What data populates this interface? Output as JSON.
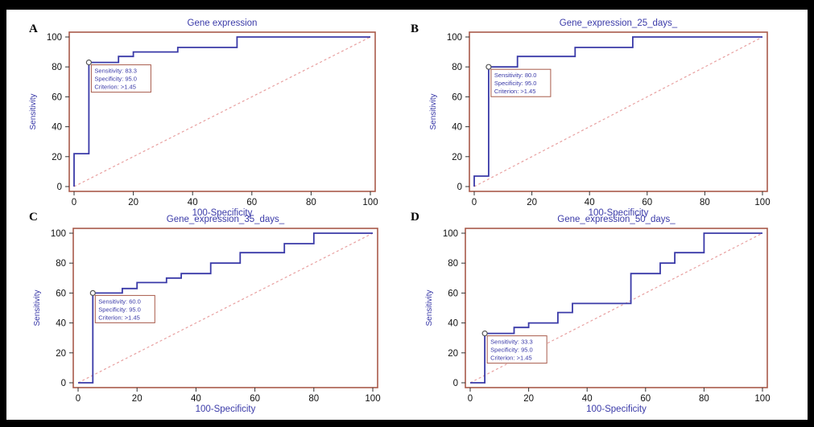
{
  "chart_data": [
    {
      "panel_letter": "A",
      "type": "line",
      "title": "Gene expression",
      "xlabel": "100-Specificity",
      "ylabel": "Sensitivity",
      "xlim": [
        0,
        100
      ],
      "ylim": [
        0,
        100
      ],
      "xticks": [
        "0",
        "20",
        "40",
        "60",
        "80",
        "100"
      ],
      "yticks": [
        "0",
        "20",
        "40",
        "60",
        "80",
        "100"
      ],
      "series": [
        {
          "x": [
            0,
            0,
            5,
            5,
            15,
            15,
            20,
            20,
            35,
            35,
            55,
            55,
            100
          ],
          "y": [
            0,
            22,
            22,
            83,
            83,
            87,
            87,
            90,
            90,
            93,
            93,
            100,
            100
          ]
        },
        {
          "x": [
            0,
            100
          ],
          "y": [
            0,
            100
          ]
        }
      ],
      "marker": {
        "x": 5,
        "y": 83
      },
      "annotation": [
        "Sensitivity: 83.3",
        "Specificity: 95.0",
        "Criterion: >1.45"
      ],
      "colors": {
        "roc": "#3a3aa8",
        "diagonal": "#e8a0a0",
        "frame": "#a85a4a"
      }
    },
    {
      "panel_letter": "B",
      "type": "line",
      "title": "Gene_expression_25_days_",
      "xlabel": "100-Specificity",
      "ylabel": "Sensitivity",
      "xlim": [
        0,
        100
      ],
      "ylim": [
        0,
        100
      ],
      "xticks": [
        "0",
        "20",
        "40",
        "60",
        "80",
        "100"
      ],
      "yticks": [
        "0",
        "20",
        "40",
        "60",
        "80",
        "100"
      ],
      "series": [
        {
          "x": [
            0,
            0,
            5,
            5,
            15,
            15,
            20,
            20,
            35,
            35,
            55,
            55,
            100
          ],
          "y": [
            0,
            7,
            7,
            80,
            80,
            87,
            87,
            87,
            87,
            93,
            93,
            100,
            100
          ]
        },
        {
          "x": [
            0,
            100
          ],
          "y": [
            0,
            100
          ]
        }
      ],
      "marker": {
        "x": 5,
        "y": 80
      },
      "annotation": [
        "Sensitivity: 80.0",
        "Specificity: 95.0",
        "Criterion: >1.45"
      ],
      "colors": {
        "roc": "#3a3aa8",
        "diagonal": "#e8a0a0",
        "frame": "#a85a4a"
      }
    },
    {
      "panel_letter": "C",
      "type": "line",
      "title": "Gene_expression_35_days_",
      "xlabel": "100-Specificity",
      "ylabel": "Sensitivity",
      "xlim": [
        0,
        100
      ],
      "ylim": [
        0,
        100
      ],
      "xticks": [
        "0",
        "20",
        "40",
        "60",
        "80",
        "100"
      ],
      "yticks": [
        "0",
        "20",
        "40",
        "60",
        "80",
        "100"
      ],
      "series": [
        {
          "x": [
            0,
            5,
            5,
            15,
            15,
            20,
            20,
            30,
            30,
            35,
            35,
            45,
            45,
            55,
            55,
            70,
            70,
            80,
            80,
            100
          ],
          "y": [
            0,
            0,
            60,
            60,
            63,
            63,
            67,
            67,
            70,
            70,
            73,
            73,
            80,
            80,
            87,
            87,
            93,
            93,
            100,
            100
          ]
        },
        {
          "x": [
            0,
            100
          ],
          "y": [
            0,
            100
          ]
        }
      ],
      "marker": {
        "x": 5,
        "y": 60
      },
      "annotation": [
        "Sensitivity: 60.0",
        "Specificity: 95.0",
        "Criterion: >1.45"
      ],
      "colors": {
        "roc": "#3a3aa8",
        "diagonal": "#e8a0a0",
        "frame": "#a85a4a"
      }
    },
    {
      "panel_letter": "D",
      "type": "line",
      "title": "Gene_expression_50_days_",
      "xlabel": "100-Specificity",
      "ylabel": "Sensitivity",
      "xlim": [
        0,
        100
      ],
      "ylim": [
        0,
        100
      ],
      "xticks": [
        "0",
        "20",
        "40",
        "60",
        "80",
        "100"
      ],
      "yticks": [
        "0",
        "20",
        "40",
        "60",
        "80",
        "100"
      ],
      "series": [
        {
          "x": [
            0,
            5,
            5,
            15,
            15,
            20,
            20,
            30,
            30,
            35,
            35,
            55,
            55,
            65,
            65,
            70,
            70,
            80,
            80,
            100
          ],
          "y": [
            0,
            0,
            33,
            33,
            37,
            37,
            40,
            40,
            47,
            47,
            53,
            53,
            73,
            73,
            80,
            80,
            87,
            87,
            100,
            100
          ]
        },
        {
          "x": [
            0,
            100
          ],
          "y": [
            0,
            100
          ]
        }
      ],
      "marker": {
        "x": 5,
        "y": 33
      },
      "annotation": [
        "Sensitivity: 33.3",
        "Specificity: 95.0",
        "Criterion: >1.45"
      ],
      "colors": {
        "roc": "#3a3aa8",
        "diagonal": "#e8a0a0",
        "frame": "#a85a4a"
      }
    }
  ]
}
